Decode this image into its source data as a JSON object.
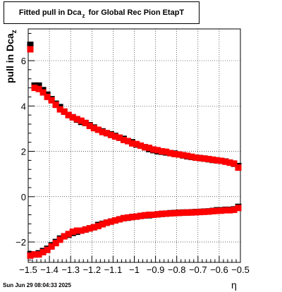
{
  "title": {
    "main": "Fitted pull in Dca",
    "subscript": "z",
    "rest": "for Global Rec Pion EtapT"
  },
  "ylabel": {
    "main": "pull in Dca",
    "subscript": "z"
  },
  "xlabel": "η",
  "footer": "Sun Jun 29 08:04:33 2025",
  "colors": {
    "series_red": "#ff0000",
    "series_black": "#000000"
  },
  "chart_data": {
    "type": "scatter",
    "xlim": [
      -1.5,
      -0.5
    ],
    "ylim": [
      -2.9,
      7.4
    ],
    "grid": true,
    "x_ticks": [
      -1.5,
      -1.4,
      -1.3,
      -1.2,
      -1.1,
      -1,
      -0.9,
      -0.8,
      -0.7,
      -0.6,
      -0.5
    ],
    "x_tick_labels": [
      "−1.5",
      "−1.4",
      "−1.3",
      "−1.2",
      "−1.1",
      "−1",
      "−0.9",
      "−0.8",
      "−0.7",
      "−0.6",
      "−0.5"
    ],
    "y_ticks": [
      -2,
      0,
      2,
      4,
      6
    ],
    "y_tick_labels": [
      "−2",
      "0",
      "2",
      "4",
      "6"
    ],
    "series": [
      {
        "color": "#000000",
        "x": [
          -1.49,
          -1.47,
          -1.45,
          -1.43,
          -1.41,
          -1.39,
          -1.37,
          -1.35,
          -1.33,
          -1.31,
          -1.29,
          -1.27,
          -1.25,
          -1.23,
          -1.21,
          -1.19,
          -1.17,
          -1.15,
          -1.13,
          -1.11,
          -1.09,
          -1.07,
          -1.05,
          -1.03,
          -1.01,
          -0.99,
          -0.97,
          -0.95,
          -0.93,
          -0.91,
          -0.89,
          -0.87,
          -0.85,
          -0.83,
          -0.81,
          -0.79,
          -0.77,
          -0.75,
          -0.73,
          -0.71,
          -0.69,
          -0.67,
          -0.65,
          -0.63,
          -0.61,
          -0.59,
          -0.57,
          -0.55,
          -0.53,
          -0.51
        ],
        "y": [
          6.7,
          4.9,
          4.9,
          4.7,
          4.5,
          4.3,
          4.1,
          3.95,
          3.75,
          3.6,
          3.5,
          3.4,
          3.3,
          3.25,
          3.15,
          3.05,
          2.95,
          2.88,
          2.8,
          2.75,
          2.68,
          2.6,
          2.55,
          2.45,
          2.4,
          2.3,
          2.25,
          2.18,
          2.1,
          2.05,
          2.0,
          1.98,
          1.95,
          1.92,
          1.9,
          1.86,
          1.82,
          1.78,
          1.75,
          1.72,
          1.7,
          1.68,
          1.65,
          1.62,
          1.6,
          1.58,
          1.55,
          1.5,
          1.45,
          1.35
        ]
      },
      {
        "color": "#ff0000",
        "x": [
          -1.49,
          -1.47,
          -1.45,
          -1.43,
          -1.41,
          -1.39,
          -1.37,
          -1.35,
          -1.33,
          -1.31,
          -1.29,
          -1.27,
          -1.25,
          -1.23,
          -1.21,
          -1.19,
          -1.17,
          -1.15,
          -1.13,
          -1.11,
          -1.09,
          -1.07,
          -1.05,
          -1.03,
          -1.01,
          -0.99,
          -0.97,
          -0.95,
          -0.93,
          -0.91,
          -0.89,
          -0.87,
          -0.85,
          -0.83,
          -0.81,
          -0.79,
          -0.77,
          -0.75,
          -0.73,
          -0.71,
          -0.69,
          -0.67,
          -0.65,
          -0.63,
          -0.61,
          -0.59,
          -0.57,
          -0.55,
          -0.53,
          -0.51
        ],
        "y": [
          6.5,
          4.8,
          4.75,
          4.6,
          4.4,
          4.25,
          4.05,
          3.85,
          3.75,
          3.6,
          3.5,
          3.42,
          3.35,
          3.25,
          3.12,
          3.02,
          2.95,
          2.85,
          2.8,
          2.72,
          2.65,
          2.6,
          2.5,
          2.45,
          2.35,
          2.32,
          2.25,
          2.18,
          2.15,
          2.08,
          2.05,
          2.0,
          1.98,
          1.92,
          1.88,
          1.86,
          1.83,
          1.8,
          1.76,
          1.72,
          1.7,
          1.68,
          1.66,
          1.63,
          1.6,
          1.58,
          1.54,
          1.5,
          1.46,
          1.28
        ]
      },
      {
        "color": "#000000",
        "x": [
          -1.49,
          -1.47,
          -1.45,
          -1.43,
          -1.41,
          -1.39,
          -1.37,
          -1.35,
          -1.33,
          -1.31,
          -1.29,
          -1.27,
          -1.25,
          -1.23,
          -1.21,
          -1.19,
          -1.17,
          -1.15,
          -1.13,
          -1.11,
          -1.09,
          -1.07,
          -1.05,
          -1.03,
          -1.01,
          -0.99,
          -0.97,
          -0.95,
          -0.93,
          -0.91,
          -0.89,
          -0.87,
          -0.85,
          -0.83,
          -0.81,
          -0.79,
          -0.77,
          -0.75,
          -0.73,
          -0.71,
          -0.69,
          -0.67,
          -0.65,
          -0.63,
          -0.61,
          -0.59,
          -0.57,
          -0.55,
          -0.53,
          -0.51
        ],
        "y": [
          -2.55,
          -2.55,
          -2.5,
          -2.4,
          -2.3,
          -2.15,
          -2.0,
          -1.85,
          -1.75,
          -1.68,
          -1.6,
          -1.55,
          -1.5,
          -1.45,
          -1.4,
          -1.35,
          -1.25,
          -1.2,
          -1.15,
          -1.1,
          -1.05,
          -1.0,
          -0.95,
          -0.93,
          -0.9,
          -0.88,
          -0.85,
          -0.83,
          -0.82,
          -0.8,
          -0.78,
          -0.76,
          -0.75,
          -0.73,
          -0.72,
          -0.71,
          -0.7,
          -0.7,
          -0.69,
          -0.68,
          -0.67,
          -0.66,
          -0.65,
          -0.63,
          -0.6,
          -0.6,
          -0.58,
          -0.58,
          -0.56,
          -0.45
        ]
      },
      {
        "color": "#ff0000",
        "x": [
          -1.49,
          -1.47,
          -1.45,
          -1.43,
          -1.41,
          -1.39,
          -1.37,
          -1.35,
          -1.33,
          -1.31,
          -1.29,
          -1.27,
          -1.25,
          -1.23,
          -1.21,
          -1.19,
          -1.17,
          -1.15,
          -1.13,
          -1.11,
          -1.09,
          -1.07,
          -1.05,
          -1.03,
          -1.01,
          -0.99,
          -0.97,
          -0.95,
          -0.93,
          -0.91,
          -0.89,
          -0.87,
          -0.85,
          -0.83,
          -0.81,
          -0.79,
          -0.77,
          -0.75,
          -0.73,
          -0.71,
          -0.69,
          -0.67,
          -0.65,
          -0.63,
          -0.61,
          -0.59,
          -0.57,
          -0.55,
          -0.53,
          -0.51
        ],
        "y": [
          -2.6,
          -2.55,
          -2.55,
          -2.45,
          -2.35,
          -2.2,
          -2.05,
          -1.9,
          -1.75,
          -1.65,
          -1.55,
          -1.5,
          -1.5,
          -1.45,
          -1.4,
          -1.35,
          -1.3,
          -1.22,
          -1.15,
          -1.1,
          -1.05,
          -1.0,
          -0.95,
          -0.92,
          -0.9,
          -0.88,
          -0.85,
          -0.82,
          -0.8,
          -0.8,
          -0.78,
          -0.76,
          -0.75,
          -0.74,
          -0.73,
          -0.72,
          -0.71,
          -0.7,
          -0.7,
          -0.69,
          -0.68,
          -0.67,
          -0.66,
          -0.64,
          -0.63,
          -0.62,
          -0.6,
          -0.6,
          -0.58,
          -0.5
        ]
      }
    ]
  }
}
